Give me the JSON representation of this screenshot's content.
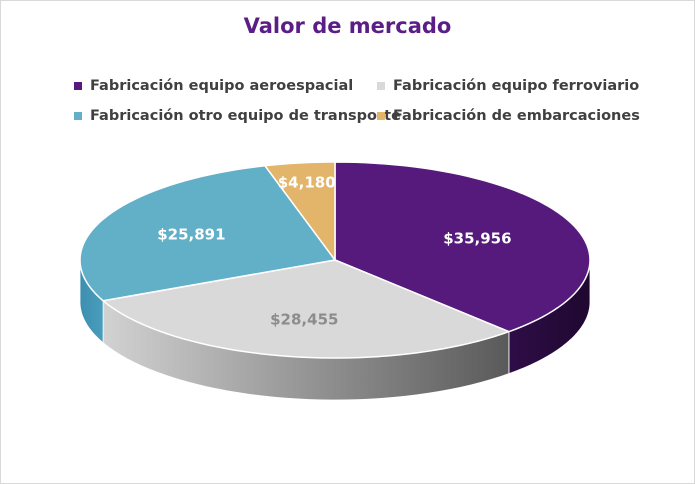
{
  "chart_data": {
    "type": "pie",
    "title": "Valor de mercado",
    "legend_position": "top",
    "style": "3d",
    "series": [
      {
        "values": [
          35956,
          28455,
          25891,
          4180
        ],
        "labels": [
          "$35,956",
          "$28,455",
          "$25,891",
          "$4,180"
        ]
      }
    ],
    "categories": [
      "Fabricación equipo aeroespacial",
      "Fabricación equipo ferroviario",
      "Fabricación otro equipo de transporte",
      "Fabricación de embarcaciones"
    ],
    "colors": [
      "#561a7c",
      "#d9d9d9",
      "#62afc8",
      "#e3b56b"
    ]
  }
}
